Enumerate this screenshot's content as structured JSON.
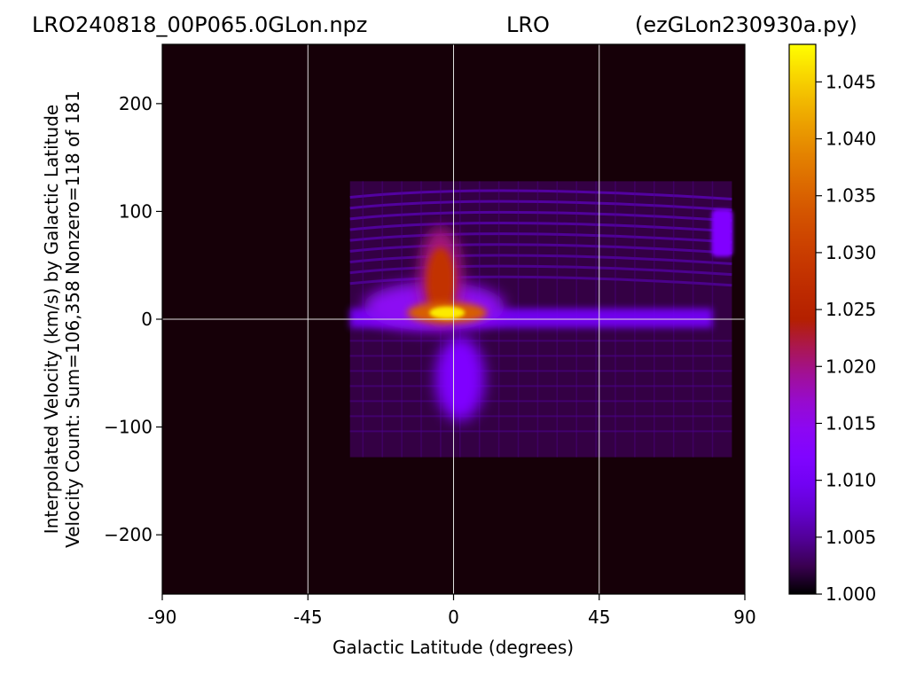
{
  "titles": {
    "left": "LRO240818_00P065.0GLon.npz",
    "center": "LRO",
    "right": "(ezGLon230930a.py)"
  },
  "chart_data": {
    "type": "heatmap",
    "xlabel": "Galactic Latitude (degrees)",
    "ylabel_line1": "Interpolated Velocity (km/s) by Galactic Latitude",
    "ylabel_line2": "Velocity Count: Sum=106,358 Nonzero=118 of 181",
    "xlim": [
      -90,
      90
    ],
    "ylim": [
      -255,
      255
    ],
    "x_ticks": [
      {
        "value": -90,
        "label": "-90"
      },
      {
        "value": -45,
        "label": "-45"
      },
      {
        "value": 0,
        "label": "0"
      },
      {
        "value": 45,
        "label": "45"
      },
      {
        "value": 90,
        "label": "90"
      }
    ],
    "y_ticks": [
      {
        "value": 200,
        "label": "200"
      },
      {
        "value": 100,
        "label": "100"
      },
      {
        "value": 0,
        "label": "0"
      },
      {
        "value": -100,
        "label": "−100"
      },
      {
        "value": -200,
        "label": "−200"
      }
    ],
    "grid": {
      "x": [
        -45,
        0,
        45
      ],
      "y": [
        0
      ]
    },
    "colormap": "gnuplot",
    "colorbar": {
      "range": [
        1.0,
        1.0483
      ],
      "ticks": [
        {
          "value": 1.0,
          "label": "1.000"
        },
        {
          "value": 1.005,
          "label": "1.005"
        },
        {
          "value": 1.01,
          "label": "1.010"
        },
        {
          "value": 1.015,
          "label": "1.015"
        },
        {
          "value": 1.02,
          "label": "1.020"
        },
        {
          "value": 1.025,
          "label": "1.025"
        },
        {
          "value": 1.03,
          "label": "1.030"
        },
        {
          "value": 1.035,
          "label": "1.035"
        },
        {
          "value": 1.04,
          "label": "1.040"
        },
        {
          "value": 1.045,
          "label": "1.045"
        }
      ]
    },
    "data_extent": {
      "lat_min": -32,
      "lat_max": 86,
      "vel_min": -128,
      "vel_max": 128
    },
    "features": [
      {
        "name": "core",
        "lat": -2,
        "vel": 6,
        "value": 1.047
      },
      {
        "name": "positive-wing",
        "lat": -4,
        "vel": 40,
        "value": 1.028
      },
      {
        "name": "negative-lobe",
        "lat": 2,
        "vel": -55,
        "value": 1.012
      },
      {
        "name": "disk-ridge",
        "lat_range": [
          -32,
          80
        ],
        "vel": 2,
        "value": 1.01
      },
      {
        "name": "edge-patch",
        "lat": 83,
        "vel": 80,
        "value": 1.01
      }
    ]
  },
  "colors": {
    "background": "#160008",
    "grid": "#e0e0e0"
  }
}
